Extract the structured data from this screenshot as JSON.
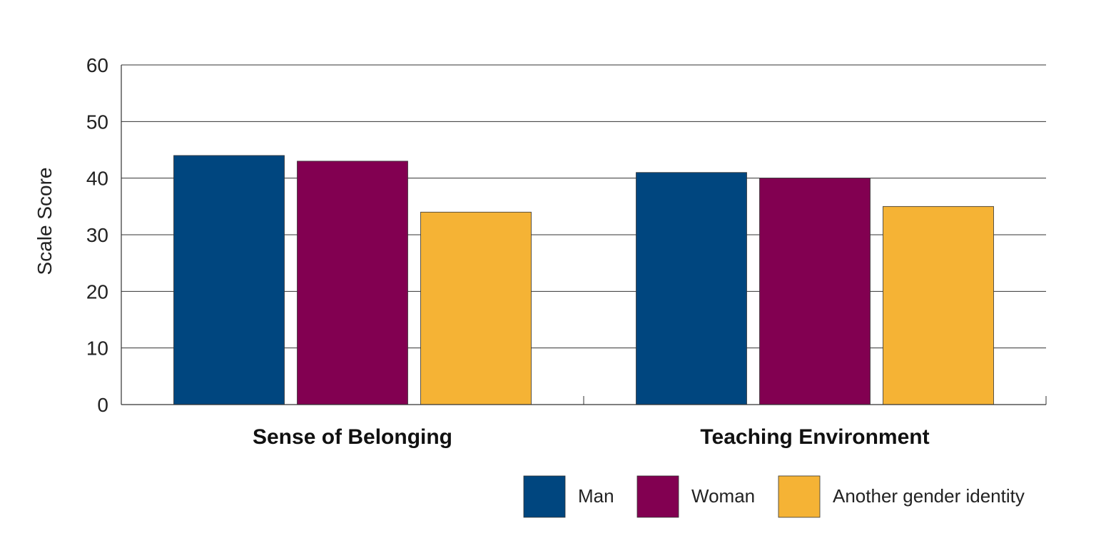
{
  "chart_data": {
    "type": "bar",
    "title": "",
    "xlabel": "",
    "ylabel": "Scale Score",
    "ylim": [
      0,
      60
    ],
    "yticks": [
      0,
      10,
      20,
      30,
      40,
      50,
      60
    ],
    "grid": true,
    "legend_position": "bottom-right",
    "categories": [
      "Sense of Belonging",
      "Teaching Environment"
    ],
    "series": [
      {
        "name": "Man",
        "color": "#00467f",
        "values": [
          44,
          41
        ]
      },
      {
        "name": "Woman",
        "color": "#820051",
        "values": [
          43,
          40
        ]
      },
      {
        "name": "Another gender identity",
        "color": "#f5b335",
        "values": [
          34,
          35
        ]
      }
    ]
  }
}
